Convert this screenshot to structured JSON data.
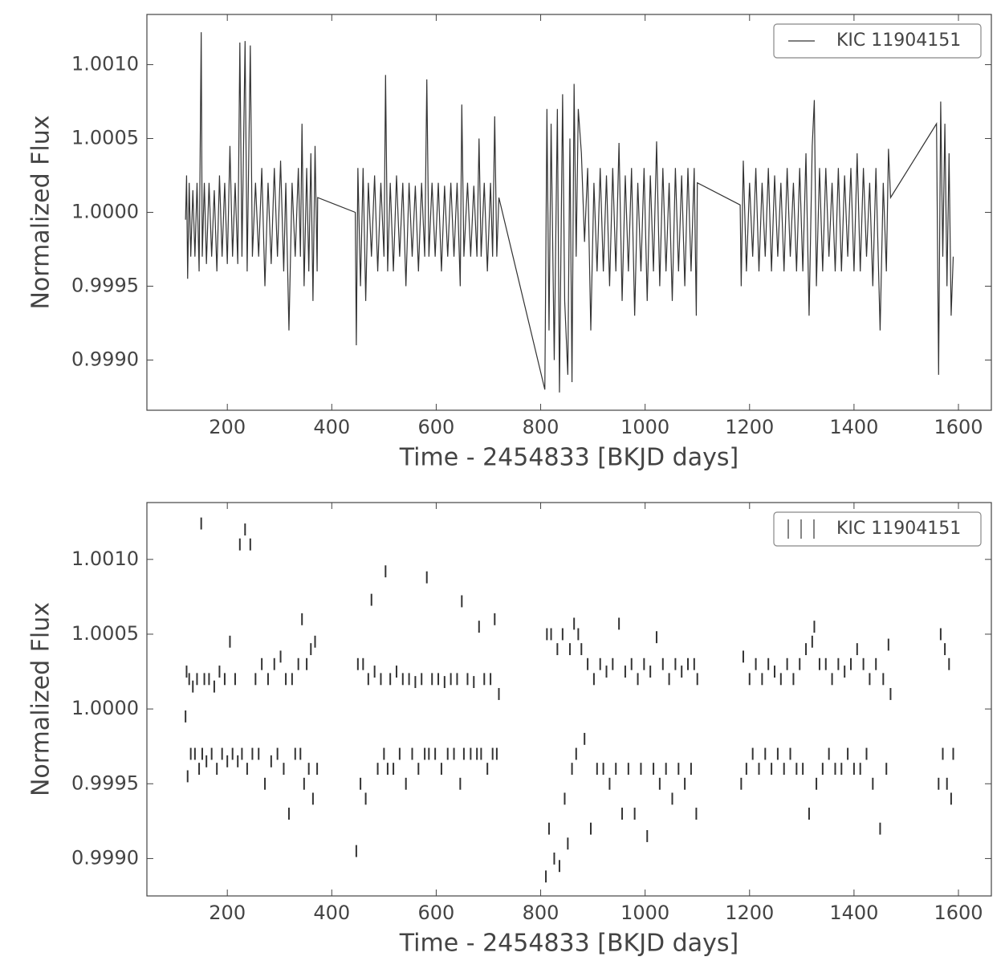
{
  "chart_data": [
    {
      "type": "line",
      "xlabel": "Time - 2454833 [BKJD days]",
      "ylabel": "Normalized Flux",
      "xlim": [
        46,
        1663
      ],
      "ylim": [
        0.99866,
        1.00134
      ],
      "xticks": [
        200,
        400,
        600,
        800,
        1000,
        1200,
        1400,
        1600
      ],
      "yticks": [
        {
          "value": 0.999,
          "label": "0.9990"
        },
        0.9995,
        {
          "value": 1,
          "label": "1.0000"
        },
        1.0005,
        {
          "value": 1.001,
          "label": "1.0010"
        }
      ],
      "legend": "upper right",
      "x": [
        120,
        122,
        124,
        127,
        130,
        134,
        138,
        142,
        146,
        150,
        152,
        156,
        160,
        165,
        170,
        175,
        180,
        185,
        190,
        195,
        200,
        205,
        210,
        215,
        220,
        224,
        228,
        234,
        238,
        244,
        248,
        254,
        260,
        266,
        272,
        278,
        284,
        290,
        296,
        302,
        308,
        312,
        318,
        324,
        330,
        336,
        340,
        343,
        347,
        352,
        356,
        360,
        364,
        368,
        372,
        373,
        445,
        447,
        450,
        455,
        460,
        465,
        470,
        476,
        482,
        488,
        494,
        500,
        503,
        507,
        512,
        518,
        524,
        530,
        536,
        542,
        548,
        554,
        560,
        566,
        572,
        578,
        582,
        586,
        592,
        598,
        604,
        610,
        616,
        622,
        628,
        634,
        640,
        646,
        649,
        653,
        660,
        666,
        672,
        678,
        682,
        686,
        692,
        698,
        704,
        708,
        712,
        716,
        720,
        808,
        812,
        816,
        820,
        826,
        832,
        836,
        842,
        846,
        852,
        856,
        860,
        864,
        868,
        872,
        878,
        884,
        890,
        896,
        902,
        908,
        914,
        920,
        926,
        932,
        938,
        944,
        950,
        956,
        962,
        968,
        974,
        980,
        986,
        992,
        998,
        1004,
        1010,
        1016,
        1022,
        1028,
        1034,
        1040,
        1046,
        1052,
        1058,
        1064,
        1070,
        1076,
        1082,
        1088,
        1094,
        1098,
        1100,
        1182,
        1184,
        1188,
        1194,
        1200,
        1206,
        1212,
        1218,
        1224,
        1230,
        1236,
        1242,
        1248,
        1254,
        1260,
        1266,
        1272,
        1278,
        1284,
        1290,
        1296,
        1302,
        1308,
        1314,
        1320,
        1324,
        1328,
        1334,
        1340,
        1346,
        1352,
        1358,
        1364,
        1370,
        1376,
        1382,
        1388,
        1394,
        1400,
        1406,
        1412,
        1418,
        1424,
        1430,
        1436,
        1442,
        1450,
        1456,
        1462,
        1466,
        1470,
        1558,
        1562,
        1566,
        1570,
        1574,
        1578,
        1582,
        1586,
        1590
      ],
      "series": [
        {
          "name": "KIC 11904151",
          "color": "#333333",
          "values": [
            0.99995,
            1.00025,
            0.99955,
            1.0002,
            0.9997,
            1.00015,
            0.9997,
            1.0002,
            0.9996,
            1.00122,
            0.9997,
            1.0002,
            0.99965,
            1.0002,
            0.9997,
            1.00015,
            0.9996,
            1.00025,
            0.9997,
            1.0002,
            0.99965,
            1.00045,
            0.9997,
            1.0002,
            0.99965,
            1.00115,
            0.9997,
            1.00116,
            0.9996,
            1.00113,
            0.9997,
            1.0002,
            0.9997,
            1.0003,
            0.9995,
            1.0002,
            0.99965,
            1.0003,
            0.9997,
            1.00035,
            0.9996,
            1.0002,
            0.9992,
            1.0002,
            0.9997,
            1.0003,
            0.9997,
            1.0006,
            0.9995,
            1.0003,
            0.9996,
            1.0004,
            0.9994,
            1.00045,
            0.9996,
            1.0001,
            1.0,
            0.9991,
            1.0003,
            0.9995,
            1.0003,
            0.9994,
            1.0002,
            0.9997,
            1.00025,
            0.9996,
            1.0002,
            0.9997,
            1.00093,
            0.9996,
            1.0002,
            0.9996,
            1.00025,
            0.9997,
            1.0002,
            0.9995,
            1.0002,
            0.9997,
            1.00018,
            0.9996,
            1.0002,
            0.9997,
            1.0009,
            0.9997,
            1.0002,
            0.9997,
            1.0002,
            0.9996,
            1.00018,
            0.9997,
            1.0002,
            0.9997,
            1.0002,
            0.9995,
            1.00073,
            0.9997,
            1.0002,
            0.9997,
            1.00018,
            0.9997,
            1.0005,
            0.9997,
            1.0002,
            0.9996,
            1.0002,
            0.9997,
            1.00065,
            0.9997,
            1.0001,
            0.9988,
            1.0007,
            0.9992,
            1.0006,
            0.999,
            1.0007,
            0.99878,
            1.0008,
            0.9994,
            0.9989,
            1.0005,
            0.99885,
            1.00087,
            0.9997,
            1.0007,
            1.0004,
            0.9998,
            1.0003,
            0.9992,
            1.0002,
            0.9996,
            1.0003,
            0.9996,
            1.00025,
            0.9995,
            1.0003,
            0.9996,
            1.00047,
            0.9994,
            1.00025,
            0.9996,
            1.0003,
            0.9993,
            1.0002,
            0.9996,
            1.0003,
            0.9994,
            1.00025,
            0.9996,
            1.00048,
            0.9995,
            1.0003,
            0.9996,
            1.0002,
            0.9994,
            1.0003,
            0.9996,
            1.00025,
            0.9995,
            1.0003,
            0.9996,
            1.0003,
            0.9993,
            1.0002,
            1.00005,
            0.9995,
            1.00035,
            0.9996,
            1.0002,
            0.9997,
            1.0003,
            0.9996,
            1.0002,
            0.9997,
            1.0003,
            0.9996,
            1.00025,
            0.9997,
            1.0002,
            0.9996,
            1.0003,
            0.9997,
            1.0002,
            0.9996,
            1.0003,
            0.9996,
            1.0004,
            0.9993,
            1.00045,
            1.00076,
            0.9995,
            1.0003,
            0.9996,
            1.0003,
            0.9997,
            1.0002,
            0.9996,
            1.0003,
            0.9996,
            1.00025,
            0.9997,
            1.0003,
            0.9996,
            1.0004,
            0.9996,
            1.0003,
            0.9997,
            1.0002,
            0.9995,
            1.0003,
            0.9992,
            1.0002,
            0.9996,
            1.00043,
            1.0001,
            1.0006,
            0.9989,
            1.00075,
            0.9997,
            1.0006,
            0.9995,
            1.0004,
            0.9993,
            0.9997
          ]
        }
      ]
    },
    {
      "type": "errorbar",
      "xlabel": "Time - 2454833 [BKJD days]",
      "ylabel": "Normalized Flux",
      "xlim": [
        46,
        1663
      ],
      "ylim": [
        0.99875,
        1.00138
      ],
      "xticks": [
        200,
        400,
        600,
        800,
        1000,
        1200,
        1400,
        1600
      ],
      "yticks": [
        {
          "value": 0.999,
          "label": "0.9990"
        },
        0.9995,
        {
          "value": 1,
          "label": "1.0000"
        },
        1.0005,
        {
          "value": 1.001,
          "label": "1.0010"
        }
      ],
      "legend": "upper right",
      "x": [
        120,
        122,
        124,
        127,
        130,
        134,
        138,
        142,
        146,
        150,
        152,
        156,
        160,
        165,
        170,
        175,
        180,
        185,
        190,
        195,
        200,
        205,
        210,
        215,
        220,
        224,
        228,
        234,
        238,
        244,
        248,
        254,
        260,
        266,
        272,
        278,
        284,
        290,
        296,
        302,
        308,
        312,
        318,
        324,
        330,
        336,
        340,
        343,
        347,
        352,
        356,
        360,
        364,
        368,
        372,
        447,
        450,
        455,
        460,
        465,
        470,
        476,
        482,
        488,
        494,
        500,
        503,
        507,
        512,
        518,
        524,
        530,
        536,
        542,
        548,
        554,
        560,
        566,
        572,
        578,
        582,
        586,
        592,
        598,
        604,
        610,
        616,
        622,
        628,
        634,
        640,
        646,
        649,
        653,
        660,
        666,
        672,
        678,
        682,
        686,
        692,
        698,
        704,
        708,
        712,
        716,
        720,
        810,
        812,
        816,
        820,
        826,
        832,
        836,
        842,
        846,
        852,
        856,
        860,
        864,
        868,
        872,
        878,
        884,
        890,
        896,
        902,
        908,
        914,
        920,
        926,
        932,
        938,
        944,
        950,
        956,
        962,
        968,
        974,
        980,
        986,
        992,
        998,
        1004,
        1010,
        1016,
        1022,
        1028,
        1034,
        1040,
        1046,
        1052,
        1058,
        1064,
        1070,
        1076,
        1082,
        1088,
        1094,
        1098,
        1100,
        1184,
        1188,
        1194,
        1200,
        1206,
        1212,
        1218,
        1224,
        1230,
        1236,
        1242,
        1248,
        1254,
        1260,
        1266,
        1272,
        1278,
        1284,
        1290,
        1296,
        1302,
        1308,
        1314,
        1320,
        1324,
        1328,
        1334,
        1340,
        1346,
        1352,
        1358,
        1364,
        1370,
        1376,
        1382,
        1388,
        1394,
        1400,
        1406,
        1412,
        1418,
        1424,
        1430,
        1436,
        1442,
        1450,
        1456,
        1462,
        1466,
        1470,
        1562,
        1566,
        1570,
        1574,
        1578,
        1582,
        1586,
        1590
      ],
      "series": [
        {
          "name": "KIC 11904151",
          "color": "#333333",
          "yerr": 4e-05,
          "values": [
            0.99995,
            1.00025,
            0.99955,
            1.0002,
            0.9997,
            1.00015,
            0.9997,
            1.0002,
            0.9996,
            1.00124,
            0.9997,
            1.0002,
            0.99965,
            1.0002,
            0.9997,
            1.00015,
            0.9996,
            1.00025,
            0.9997,
            1.0002,
            0.99965,
            1.00045,
            0.9997,
            1.0002,
            0.99965,
            1.0011,
            0.9997,
            1.0012,
            0.9996,
            1.0011,
            0.9997,
            1.0002,
            0.9997,
            1.0003,
            0.9995,
            1.0002,
            0.99965,
            1.0003,
            0.9997,
            1.00035,
            0.9996,
            1.0002,
            0.9993,
            1.0002,
            0.9997,
            1.0003,
            0.9997,
            1.0006,
            0.9995,
            1.0003,
            0.9996,
            1.0004,
            0.9994,
            1.00045,
            0.9996,
            0.99905,
            1.0003,
            0.9995,
            1.0003,
            0.9994,
            1.0002,
            1.00073,
            1.00025,
            0.9996,
            1.0002,
            0.9997,
            1.00092,
            0.9996,
            1.0002,
            0.9996,
            1.00025,
            0.9997,
            1.0002,
            0.9995,
            1.0002,
            0.9997,
            1.00018,
            0.9996,
            1.0002,
            0.9997,
            1.00088,
            0.9997,
            1.0002,
            0.9997,
            1.0002,
            0.9996,
            1.00018,
            0.9997,
            1.0002,
            0.9997,
            1.0002,
            0.9995,
            1.00072,
            0.9997,
            1.0002,
            0.9997,
            1.00018,
            0.9997,
            1.00055,
            0.9997,
            1.0002,
            0.9996,
            1.0002,
            0.9997,
            1.0006,
            0.9997,
            1.0001,
            0.99888,
            1.0005,
            0.9992,
            1.0005,
            0.999,
            1.0004,
            0.99895,
            1.0005,
            0.9994,
            0.9991,
            1.0004,
            0.9996,
            1.00057,
            0.9997,
            1.0005,
            1.0004,
            0.9998,
            1.0003,
            0.9992,
            1.0002,
            0.9996,
            1.0003,
            0.9996,
            1.00025,
            0.9995,
            1.0003,
            0.9996,
            1.00057,
            0.9993,
            1.00025,
            0.9996,
            1.0003,
            0.9993,
            1.0002,
            0.9996,
            1.0003,
            0.99915,
            1.00025,
            0.9996,
            1.00048,
            0.9995,
            1.0003,
            0.9996,
            1.0002,
            0.9994,
            1.0003,
            0.9996,
            1.00025,
            0.9995,
            1.0003,
            0.9996,
            1.0003,
            0.9993,
            1.0002,
            0.9995,
            1.00035,
            0.9996,
            1.0002,
            0.9997,
            1.0003,
            0.9996,
            1.0002,
            0.9997,
            1.0003,
            0.9996,
            1.00025,
            0.9997,
            1.0002,
            0.9996,
            1.0003,
            0.9997,
            1.0002,
            0.9996,
            1.0003,
            0.9996,
            1.0004,
            0.9993,
            1.00045,
            1.00055,
            0.9995,
            1.0003,
            0.9996,
            1.0003,
            0.9997,
            1.0002,
            0.9996,
            1.0003,
            0.9996,
            1.00025,
            0.9997,
            1.0003,
            0.9996,
            1.0004,
            0.9996,
            1.0003,
            0.9997,
            1.0002,
            0.9995,
            1.0003,
            0.9992,
            1.0002,
            0.9996,
            1.00043,
            1.0001,
            0.9995,
            1.0005,
            0.9997,
            1.0004,
            0.9995,
            1.0003,
            0.9994,
            0.9997
          ]
        }
      ]
    }
  ]
}
